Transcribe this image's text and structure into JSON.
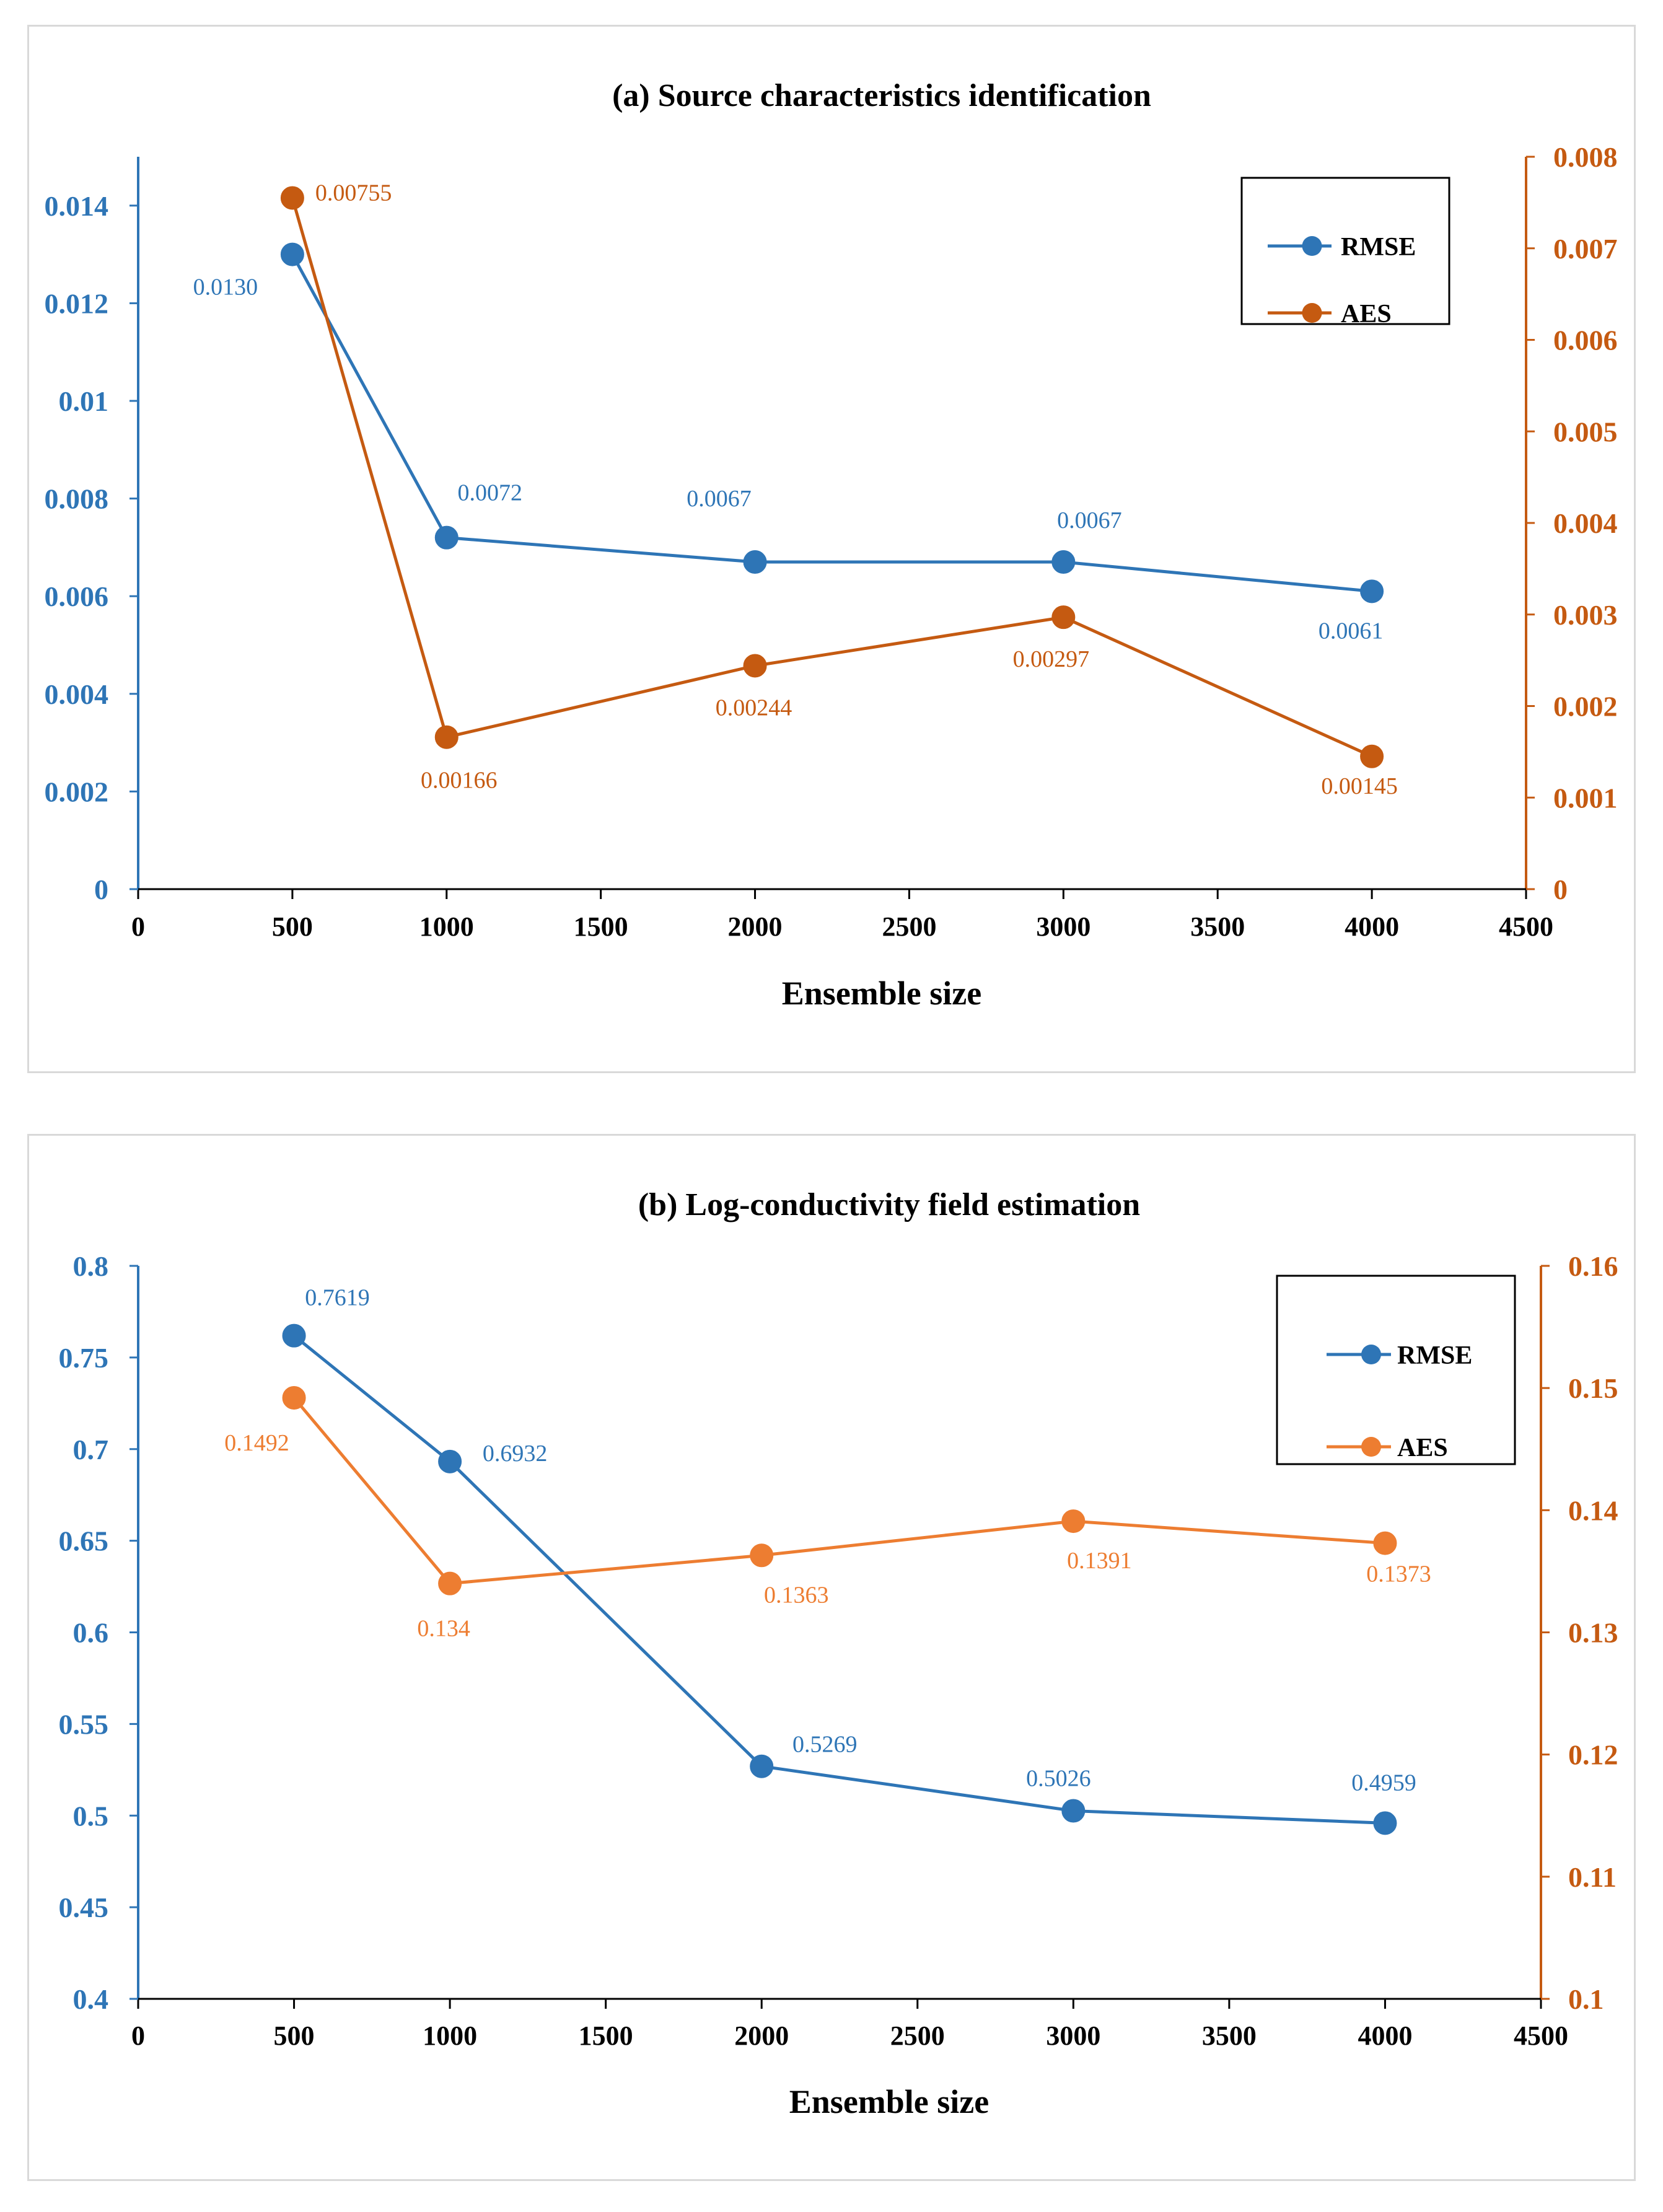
{
  "chart_data": [
    {
      "type": "line",
      "title": "(a) Source characteristics identification",
      "xlabel": "Ensemble size",
      "xlim": [
        0,
        4500
      ],
      "xticks": [
        "0",
        "500",
        "1000",
        "1500",
        "2000",
        "2500",
        "3000",
        "3500",
        "4000",
        "4500"
      ],
      "ylim_left": [
        0,
        0.015
      ],
      "yticks_left": [
        "0",
        "0.002",
        "0.004",
        "0.006",
        "0.008",
        "0.01",
        "0.012",
        "0.014"
      ],
      "ylim_right": [
        0,
        0.008
      ],
      "yticks_right": [
        "0",
        "0.001",
        "0.002",
        "0.003",
        "0.004",
        "0.005",
        "0.006",
        "0.007",
        "0.008"
      ],
      "legend_position": "top-right",
      "series": [
        {
          "name": "RMSE",
          "axis": "left",
          "color": "#2e75b6",
          "x": [
            500,
            1000,
            2000,
            3000,
            4000
          ],
          "values": [
            0.013,
            0.0072,
            0.0067,
            0.0067,
            0.0061
          ],
          "labels": [
            "0.0130",
            "0.0072",
            "0.0067",
            "0.0067",
            "0.0061"
          ]
        },
        {
          "name": "AES",
          "axis": "right",
          "color": "#c55a11",
          "x": [
            500,
            1000,
            2000,
            3000,
            4000
          ],
          "values": [
            0.00755,
            0.00166,
            0.00244,
            0.00297,
            0.00145
          ],
          "labels": [
            "0.00755",
            "0.00166",
            "0.00244",
            "0.00297",
            "0.00145"
          ]
        }
      ]
    },
    {
      "type": "line",
      "title": "(b) Log-conductivity field estimation",
      "xlabel": "Ensemble size",
      "xlim": [
        0,
        4500
      ],
      "xticks": [
        "0",
        "500",
        "1000",
        "1500",
        "2000",
        "2500",
        "3000",
        "3500",
        "4000",
        "4500"
      ],
      "ylim_left": [
        0.4,
        0.8
      ],
      "yticks_left": [
        "0.4",
        "0.45",
        "0.5",
        "0.55",
        "0.6",
        "0.65",
        "0.7",
        "0.75",
        "0.8"
      ],
      "ylim_right": [
        0.1,
        0.16
      ],
      "yticks_right": [
        "0.1",
        "0.11",
        "0.12",
        "0.13",
        "0.14",
        "0.15",
        "0.16"
      ],
      "legend_position": "top-right",
      "series": [
        {
          "name": "RMSE",
          "axis": "left",
          "color": "#2e75b6",
          "x": [
            500,
            1000,
            2000,
            3000,
            4000
          ],
          "values": [
            0.7619,
            0.6932,
            0.5269,
            0.5026,
            0.4959
          ],
          "labels": [
            "0.7619",
            "0.6932",
            "0.5269",
            "0.5026",
            "0.4959"
          ]
        },
        {
          "name": "AES",
          "axis": "right",
          "color": "#ed7d31",
          "x": [
            500,
            1000,
            2000,
            3000,
            4000
          ],
          "values": [
            0.1492,
            0.134,
            0.1363,
            0.1391,
            0.1373
          ],
          "labels": [
            "0.1492",
            "0.134",
            "0.1363",
            "0.1391",
            "0.1373"
          ]
        }
      ]
    }
  ]
}
